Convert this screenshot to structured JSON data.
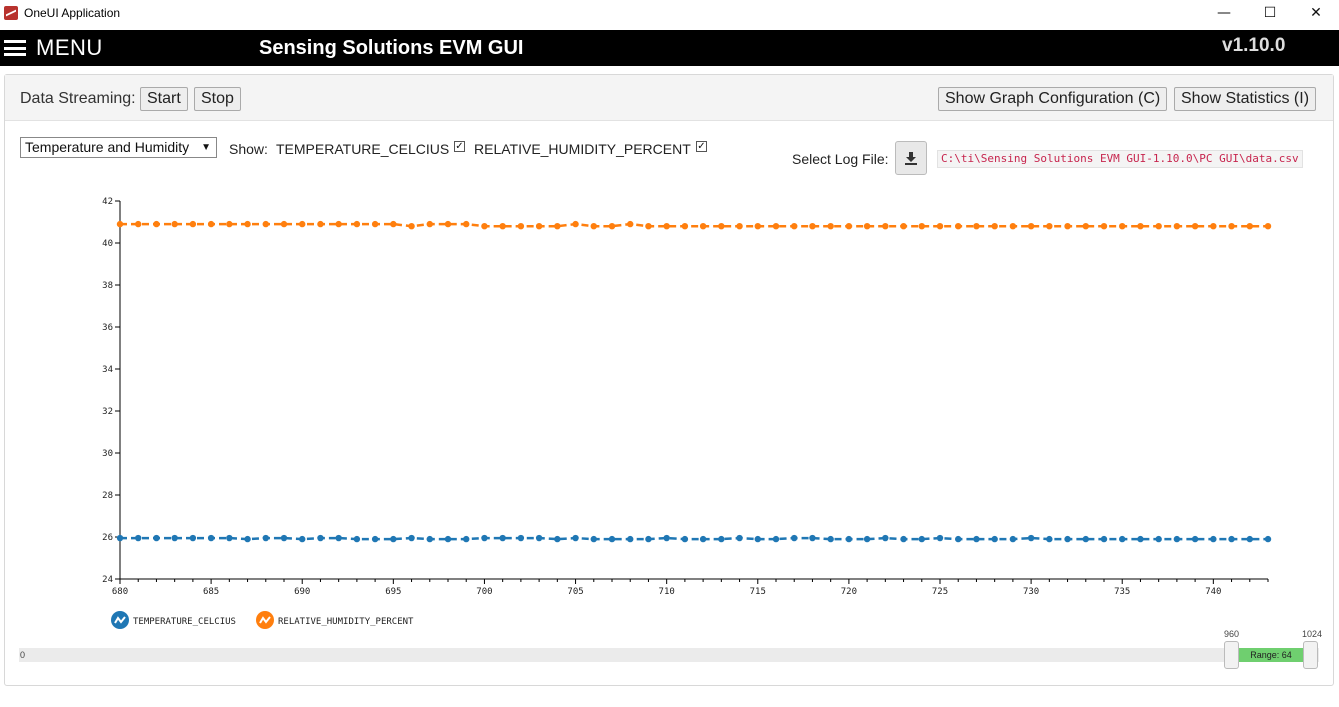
{
  "window": {
    "title": "OneUI Application",
    "minimize": "—",
    "maximize": "☐",
    "close": "✕"
  },
  "header": {
    "menu_label": "MENU",
    "title": "Sensing Solutions EVM GUI",
    "version": "v1.10.0"
  },
  "toolbar": {
    "streaming_label": "Data Streaming:",
    "start_label": "Start",
    "stop_label": "Stop",
    "graph_config_label": "Show Graph Configuration (C)",
    "statistics_label": "Show Statistics (I)"
  },
  "controls": {
    "dataset_selected": "Temperature and Humidity",
    "show_label": "Show:",
    "series1_label": "TEMPERATURE_CELCIUS",
    "series2_label": "RELATIVE_HUMIDITY_PERCENT",
    "log_file_label": "Select Log File:",
    "log_file_path": "C:\\ti\\Sensing Solutions EVM GUI-1.10.0\\PC GUI\\data.csv",
    "download_icon": "download-icon"
  },
  "chart_data": {
    "type": "line",
    "xlim": [
      680,
      743
    ],
    "ylim": [
      24,
      42
    ],
    "x_ticks": [
      "680",
      "685",
      "690",
      "695",
      "700",
      "705",
      "710",
      "715",
      "720",
      "725",
      "730",
      "735",
      "740"
    ],
    "y_ticks": [
      "24",
      "26",
      "28",
      "30",
      "32",
      "34",
      "36",
      "38",
      "40",
      "42"
    ],
    "x": [
      680,
      681,
      682,
      683,
      684,
      685,
      686,
      687,
      688,
      689,
      690,
      691,
      692,
      693,
      694,
      695,
      696,
      697,
      698,
      699,
      700,
      701,
      702,
      703,
      704,
      705,
      706,
      707,
      708,
      709,
      710,
      711,
      712,
      713,
      714,
      715,
      716,
      717,
      718,
      719,
      720,
      721,
      722,
      723,
      724,
      725,
      726,
      727,
      728,
      729,
      730,
      731,
      732,
      733,
      734,
      735,
      736,
      737,
      738,
      739,
      740,
      741,
      742,
      743
    ],
    "legend_position": "bottom-left",
    "series": [
      {
        "name": "TEMPERATURE_CELCIUS",
        "color": "#1f77b4",
        "values": [
          25.95,
          25.95,
          25.95,
          25.95,
          25.95,
          25.95,
          25.95,
          25.9,
          25.95,
          25.95,
          25.9,
          25.95,
          25.95,
          25.9,
          25.9,
          25.9,
          25.95,
          25.9,
          25.9,
          25.9,
          25.95,
          25.95,
          25.95,
          25.95,
          25.9,
          25.95,
          25.9,
          25.9,
          25.9,
          25.9,
          25.95,
          25.9,
          25.9,
          25.9,
          25.95,
          25.9,
          25.9,
          25.95,
          25.95,
          25.9,
          25.9,
          25.9,
          25.95,
          25.9,
          25.9,
          25.95,
          25.9,
          25.9,
          25.9,
          25.9,
          25.95,
          25.9,
          25.9,
          25.9,
          25.9,
          25.9,
          25.9,
          25.9,
          25.9,
          25.9,
          25.9,
          25.9,
          25.9,
          25.9
        ]
      },
      {
        "name": "RELATIVE_HUMIDITY_PERCENT",
        "color": "#ff7f0e",
        "values": [
          40.9,
          40.9,
          40.9,
          40.9,
          40.9,
          40.9,
          40.9,
          40.9,
          40.9,
          40.9,
          40.9,
          40.9,
          40.9,
          40.9,
          40.9,
          40.9,
          40.8,
          40.9,
          40.9,
          40.9,
          40.8,
          40.8,
          40.8,
          40.8,
          40.8,
          40.9,
          40.8,
          40.8,
          40.9,
          40.8,
          40.8,
          40.8,
          40.8,
          40.8,
          40.8,
          40.8,
          40.8,
          40.8,
          40.8,
          40.8,
          40.8,
          40.8,
          40.8,
          40.8,
          40.8,
          40.8,
          40.8,
          40.8,
          40.8,
          40.8,
          40.8,
          40.8,
          40.8,
          40.8,
          40.8,
          40.8,
          40.8,
          40.8,
          40.8,
          40.8,
          40.8,
          40.8,
          40.8,
          40.8
        ]
      }
    ]
  },
  "slider": {
    "min_label": "0",
    "low_label": "960",
    "high_label": "1024",
    "range_label": "Range: 64"
  }
}
